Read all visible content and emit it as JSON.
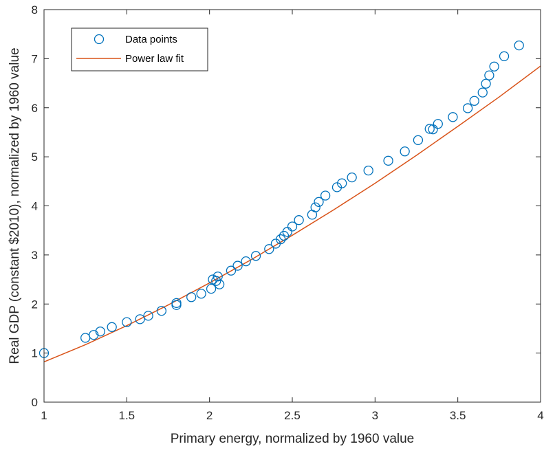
{
  "chart_data": {
    "type": "scatter",
    "title": "",
    "xlabel": "Primary energy, normalized by 1960 value",
    "ylabel": "Real GDP (constant $2010), normalized by 1960 value",
    "xlim": [
      1,
      4
    ],
    "ylim": [
      0,
      8
    ],
    "x_ticks": [
      "1",
      "1.5",
      "2",
      "2.5",
      "3",
      "3.5",
      "4"
    ],
    "y_ticks": [
      "0",
      "1",
      "2",
      "3",
      "4",
      "5",
      "6",
      "7",
      "8"
    ],
    "grid": false,
    "legend_position": "top-left",
    "series": [
      {
        "name": "Data points",
        "type": "scatter",
        "marker": "circle",
        "color": "#0072BD",
        "points": [
          [
            1.0,
            1.0
          ],
          [
            1.25,
            1.31
          ],
          [
            1.3,
            1.37
          ],
          [
            1.34,
            1.44
          ],
          [
            1.41,
            1.53
          ],
          [
            1.5,
            1.63
          ],
          [
            1.58,
            1.69
          ],
          [
            1.63,
            1.76
          ],
          [
            1.71,
            1.86
          ],
          [
            1.8,
            1.98
          ],
          [
            1.8,
            2.02
          ],
          [
            1.89,
            2.14
          ],
          [
            1.95,
            2.21
          ],
          [
            2.01,
            2.31
          ],
          [
            2.02,
            2.5
          ],
          [
            2.04,
            2.47
          ],
          [
            2.05,
            2.56
          ],
          [
            2.06,
            2.4
          ],
          [
            2.13,
            2.68
          ],
          [
            2.17,
            2.78
          ],
          [
            2.22,
            2.87
          ],
          [
            2.28,
            2.98
          ],
          [
            2.36,
            3.12
          ],
          [
            2.4,
            3.23
          ],
          [
            2.43,
            3.32
          ],
          [
            2.45,
            3.39
          ],
          [
            2.47,
            3.47
          ],
          [
            2.5,
            3.58
          ],
          [
            2.54,
            3.71
          ],
          [
            2.62,
            3.82
          ],
          [
            2.64,
            3.97
          ],
          [
            2.66,
            4.08
          ],
          [
            2.7,
            4.21
          ],
          [
            2.77,
            4.38
          ],
          [
            2.8,
            4.46
          ],
          [
            2.86,
            4.58
          ],
          [
            2.96,
            4.72
          ],
          [
            3.08,
            4.92
          ],
          [
            3.18,
            5.11
          ],
          [
            3.26,
            5.34
          ],
          [
            3.33,
            5.57
          ],
          [
            3.35,
            5.56
          ],
          [
            3.38,
            5.67
          ],
          [
            3.47,
            5.81
          ],
          [
            3.56,
            5.99
          ],
          [
            3.6,
            6.14
          ],
          [
            3.65,
            6.31
          ],
          [
            3.67,
            6.49
          ],
          [
            3.69,
            6.66
          ],
          [
            3.72,
            6.84
          ],
          [
            3.78,
            7.05
          ],
          [
            3.87,
            7.27
          ]
        ]
      },
      {
        "name": "Power law fit",
        "type": "line",
        "color": "#D95319",
        "x": [
          1.0,
          1.25,
          1.5,
          1.75,
          2.0,
          2.25,
          2.5,
          2.75,
          3.0,
          3.25,
          3.5,
          3.75,
          4.0
        ],
        "y": [
          0.82,
          1.17,
          1.56,
          1.98,
          2.43,
          2.9,
          3.4,
          3.92,
          4.46,
          5.03,
          5.62,
          6.22,
          6.85
        ]
      }
    ]
  }
}
